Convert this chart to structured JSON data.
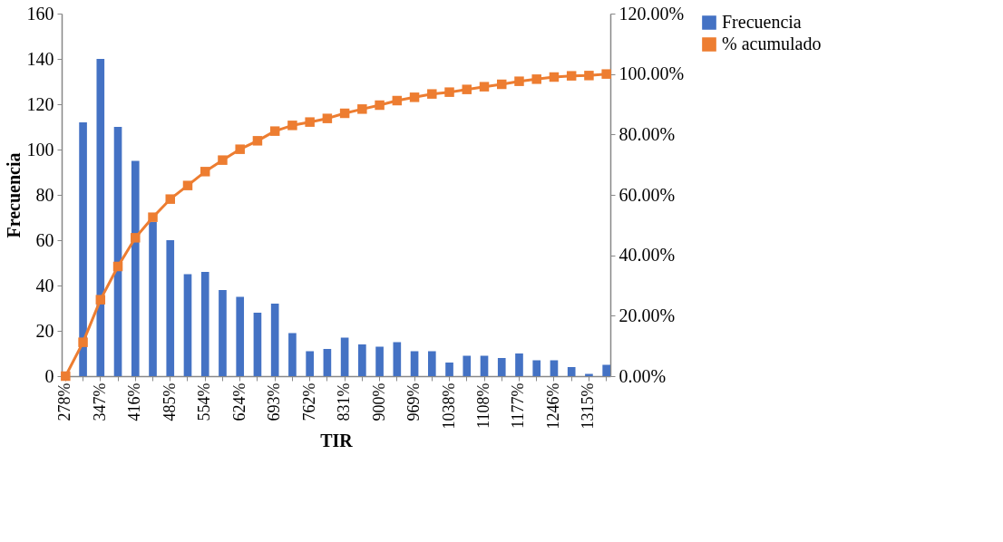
{
  "chart_data": {
    "type": "bar",
    "categories": [
      "278%",
      null,
      "347%",
      null,
      "416%",
      null,
      "485%",
      null,
      "554%",
      null,
      "624%",
      null,
      "693%",
      null,
      "762%",
      null,
      "831%",
      null,
      "900%",
      null,
      "969%",
      null,
      "1038%",
      null,
      "1108%",
      null,
      "1177%",
      null,
      "1246%",
      null,
      "1315%",
      null
    ],
    "xlabel": "TIR",
    "ylabel": "Frecuencia",
    "series": [
      {
        "name": "Frecuencia",
        "color": "#4472c4",
        "values": [
          0,
          112,
          140,
          110,
          95,
          68,
          60,
          45,
          46,
          38,
          35,
          28,
          32,
          19,
          11,
          12,
          17,
          14,
          13,
          15,
          11,
          11,
          6,
          9,
          9,
          8,
          10,
          7,
          7,
          4,
          1,
          5
        ]
      },
      {
        "name": "% acumulado",
        "type": "line",
        "axis": "y2",
        "color": "#ed7d31",
        "marker": "square",
        "values": [
          0,
          11.2,
          25.3,
          36.3,
          45.8,
          52.6,
          58.6,
          63.1,
          67.7,
          71.5,
          75.1,
          77.9,
          81.1,
          83.0,
          84.1,
          85.3,
          87.0,
          88.4,
          89.7,
          91.2,
          92.3,
          93.4,
          94.0,
          94.9,
          95.8,
          96.6,
          97.6,
          98.3,
          99.0,
          99.4,
          99.5,
          100
        ]
      }
    ],
    "ylim": [
      0,
      160
    ],
    "yticks": [
      0,
      20,
      40,
      60,
      80,
      100,
      120,
      140,
      160
    ],
    "y2lim": [
      0,
      120
    ],
    "y2ticks": [
      {
        "value": 0,
        "label": "0.00%"
      },
      {
        "value": 20,
        "label": "20.00%"
      },
      {
        "value": 40,
        "label": "40.00%"
      },
      {
        "value": 60,
        "label": "60.00%"
      },
      {
        "value": 80,
        "label": "80.00%"
      },
      {
        "value": 100,
        "label": "100.00%"
      },
      {
        "value": 120,
        "label": "120.00%"
      }
    ],
    "grid": false,
    "legend": "right"
  }
}
